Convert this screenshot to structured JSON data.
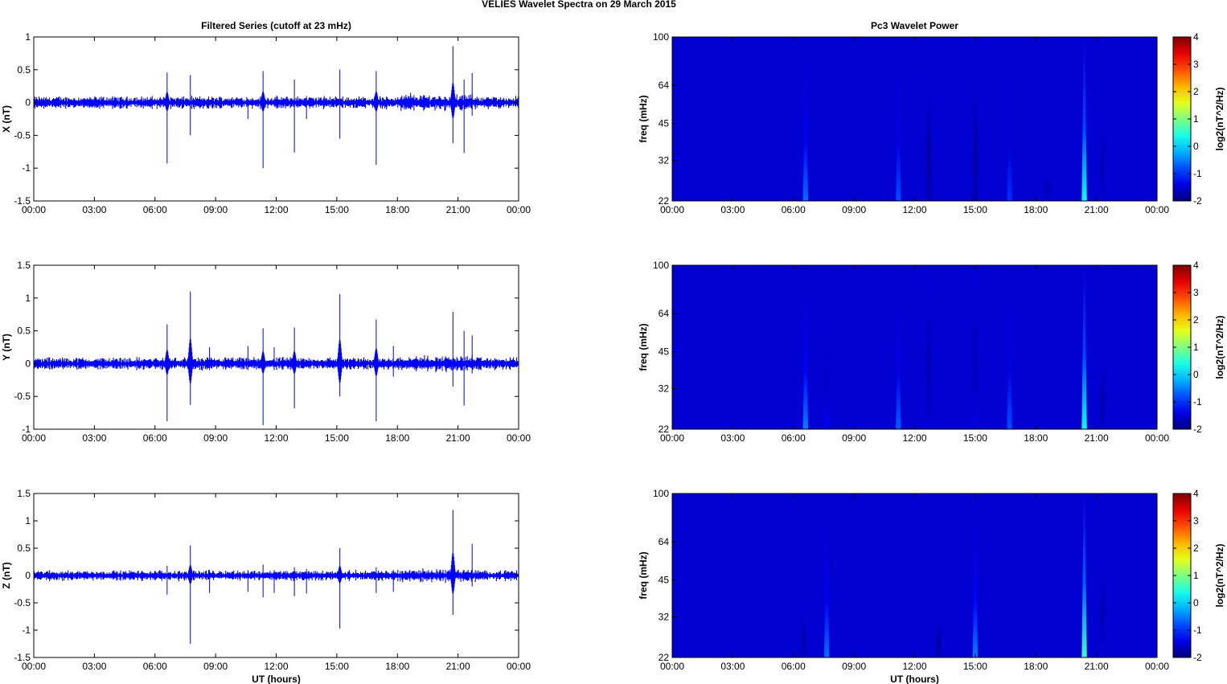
{
  "figure": {
    "suptitle": "VELIES Wavelet Spectra on 29 March      2015",
    "colors": {
      "trace": "#0000ff",
      "axis": "#000000",
      "background": "#ffffff"
    }
  },
  "chart_data": [
    {
      "id": "ts-x",
      "type": "line",
      "title": "Filtered Series (cutoff at 23 mHz)",
      "xlabel": "",
      "ylabel": "X (nT)",
      "xticks": [
        "00:00",
        "03:00",
        "06:00",
        "09:00",
        "12:00",
        "15:00",
        "18:00",
        "21:00",
        "00:00"
      ],
      "xlim_hours": [
        0,
        24
      ],
      "ylim": [
        -1.5,
        1
      ],
      "yticks": [
        -1.5,
        -1,
        -0.5,
        0,
        0.5,
        1
      ],
      "noise_amplitude_nT": 0.06,
      "spikes": [
        {
          "t_hours": 6.6,
          "max": 0.46,
          "min": -0.93
        },
        {
          "t_hours": 7.75,
          "max": 0.42,
          "min": -0.5
        },
        {
          "t_hours": 10.6,
          "max": 0.05,
          "min": -0.25
        },
        {
          "t_hours": 11.35,
          "max": 0.48,
          "min": -1.0
        },
        {
          "t_hours": 12.9,
          "max": 0.35,
          "min": -0.76
        },
        {
          "t_hours": 13.5,
          "max": 0.1,
          "min": -0.25
        },
        {
          "t_hours": 15.15,
          "max": 0.5,
          "min": -0.55
        },
        {
          "t_hours": 16.95,
          "max": 0.48,
          "min": -0.95
        },
        {
          "t_hours": 18.65,
          "max": 0.15,
          "min": -0.1
        },
        {
          "t_hours": 20.75,
          "max": 0.86,
          "min": -0.62
        },
        {
          "t_hours": 21.3,
          "max": 0.35,
          "min": -0.77
        },
        {
          "t_hours": 21.7,
          "max": 0.45,
          "min": -0.2
        }
      ]
    },
    {
      "id": "ts-y",
      "type": "line",
      "title": "",
      "xlabel": "",
      "ylabel": "Y (nT)",
      "xticks": [
        "00:00",
        "03:00",
        "06:00",
        "09:00",
        "12:00",
        "15:00",
        "18:00",
        "21:00",
        "00:00"
      ],
      "xlim_hours": [
        0,
        24
      ],
      "ylim": [
        -1,
        1.5
      ],
      "yticks": [
        -1,
        -0.5,
        0,
        0.5,
        1,
        1.5
      ],
      "noise_amplitude_nT": 0.06,
      "spikes": [
        {
          "t_hours": 6.6,
          "max": 0.6,
          "min": -0.88
        },
        {
          "t_hours": 7.75,
          "max": 1.1,
          "min": -0.63
        },
        {
          "t_hours": 8.7,
          "max": 0.25,
          "min": -0.1
        },
        {
          "t_hours": 10.6,
          "max": 0.27,
          "min": -0.1
        },
        {
          "t_hours": 11.35,
          "max": 0.54,
          "min": -0.94
        },
        {
          "t_hours": 11.9,
          "max": 0.25,
          "min": -0.1
        },
        {
          "t_hours": 12.9,
          "max": 0.55,
          "min": -0.68
        },
        {
          "t_hours": 15.15,
          "max": 1.06,
          "min": -0.5
        },
        {
          "t_hours": 16.95,
          "max": 0.67,
          "min": -0.88
        },
        {
          "t_hours": 17.8,
          "max": 0.27,
          "min": -0.2
        },
        {
          "t_hours": 20.75,
          "max": 0.79,
          "min": -0.35
        },
        {
          "t_hours": 21.3,
          "max": 0.5,
          "min": -0.64
        },
        {
          "t_hours": 21.7,
          "max": 0.43,
          "min": -0.15
        }
      ]
    },
    {
      "id": "ts-z",
      "type": "line",
      "title": "",
      "xlabel": "UT (hours)",
      "ylabel": "Z (nT)",
      "xticks": [
        "00:00",
        "03:00",
        "06:00",
        "09:00",
        "12:00",
        "15:00",
        "18:00",
        "21:00",
        "00:00"
      ],
      "xlim_hours": [
        0,
        24
      ],
      "ylim": [
        -1.5,
        1.5
      ],
      "yticks": [
        -1.5,
        -1,
        -0.5,
        0,
        0.5,
        1,
        1.5
      ],
      "noise_amplitude_nT": 0.06,
      "spikes": [
        {
          "t_hours": 6.6,
          "max": 0.18,
          "min": -0.35
        },
        {
          "t_hours": 7.75,
          "max": 0.55,
          "min": -1.25
        },
        {
          "t_hours": 8.7,
          "max": 0.1,
          "min": -0.32
        },
        {
          "t_hours": 10.6,
          "max": 0.1,
          "min": -0.3
        },
        {
          "t_hours": 11.35,
          "max": 0.2,
          "min": -0.4
        },
        {
          "t_hours": 11.9,
          "max": 0.1,
          "min": -0.32
        },
        {
          "t_hours": 12.9,
          "max": 0.15,
          "min": -0.38
        },
        {
          "t_hours": 13.5,
          "max": 0.12,
          "min": -0.33
        },
        {
          "t_hours": 15.15,
          "max": 0.5,
          "min": -0.97
        },
        {
          "t_hours": 16.95,
          "max": 0.15,
          "min": -0.32
        },
        {
          "t_hours": 17.8,
          "max": 0.1,
          "min": -0.3
        },
        {
          "t_hours": 20.75,
          "max": 1.2,
          "min": -0.72
        },
        {
          "t_hours": 21.7,
          "max": 0.58,
          "min": -0.2
        }
      ]
    },
    {
      "id": "wp-1",
      "type": "heatmap",
      "title": "Pc3 Wavelet Power",
      "xlabel": "",
      "ylabel": "freq (mHz)",
      "xticks": [
        "00:00",
        "03:00",
        "06:00",
        "09:00",
        "12:00",
        "15:00",
        "18:00",
        "21:00",
        "00:00"
      ],
      "xlim_hours": [
        0,
        24
      ],
      "yticks": [
        22,
        32,
        45,
        64,
        100
      ],
      "ylim_mHz": [
        22,
        100
      ],
      "yscale": "log",
      "colorbar": {
        "label": "log2(nT^2/Hz)",
        "range": [
          -2,
          4
        ],
        "ticks": [
          -2,
          -1,
          0,
          1,
          2,
          3,
          4
        ],
        "colormap": "jet"
      },
      "background_value": -2,
      "bursts": [
        {
          "t_hours": 6.6,
          "peak": -0.6,
          "fmax_mHz": 75
        },
        {
          "t_hours": 11.2,
          "peak": -0.8,
          "fmax_mHz": 70
        },
        {
          "t_hours": 12.7,
          "peak": -1.7,
          "fmax_mHz": 70
        },
        {
          "t_hours": 15.0,
          "peak": -1.7,
          "fmax_mHz": 75
        },
        {
          "t_hours": 16.7,
          "peak": -1.0,
          "fmax_mHz": 68
        },
        {
          "t_hours": 18.6,
          "peak": -1.5,
          "fmax_mHz": 29
        },
        {
          "t_hours": 20.4,
          "peak": 0.3,
          "fmax_mHz": 100
        },
        {
          "t_hours": 21.3,
          "peak": -1.5,
          "fmax_mHz": 48
        }
      ]
    },
    {
      "id": "wp-2",
      "type": "heatmap",
      "title": "",
      "xlabel": "",
      "ylabel": "freq (mHz)",
      "xticks": [
        "00:00",
        "03:00",
        "06:00",
        "09:00",
        "12:00",
        "15:00",
        "18:00",
        "21:00",
        "00:00"
      ],
      "xlim_hours": [
        0,
        24
      ],
      "yticks": [
        22,
        32,
        45,
        64,
        100
      ],
      "ylim_mHz": [
        22,
        100
      ],
      "yscale": "log",
      "colorbar": {
        "label": "log2(nT^2/Hz)",
        "range": [
          -2,
          4
        ],
        "ticks": [
          -2,
          -1,
          0,
          1,
          2,
          3,
          4
        ],
        "colormap": "jet"
      },
      "background_value": -2,
      "bursts": [
        {
          "t_hours": 6.6,
          "peak": -0.5,
          "fmax_mHz": 75
        },
        {
          "t_hours": 7.65,
          "peak": -1.3,
          "fmax_mHz": 60
        },
        {
          "t_hours": 11.2,
          "peak": -0.7,
          "fmax_mHz": 68
        },
        {
          "t_hours": 12.7,
          "peak": -1.5,
          "fmax_mHz": 90
        },
        {
          "t_hours": 15.0,
          "peak": -1.4,
          "fmax_mHz": 95
        },
        {
          "t_hours": 16.7,
          "peak": -0.8,
          "fmax_mHz": 72
        },
        {
          "t_hours": 20.4,
          "peak": 0.3,
          "fmax_mHz": 100
        },
        {
          "t_hours": 21.3,
          "peak": -1.6,
          "fmax_mHz": 45
        }
      ]
    },
    {
      "id": "wp-3",
      "type": "heatmap",
      "title": "",
      "xlabel": "UT (hours)",
      "ylabel": "freq (mHz)",
      "xticks": [
        "00:00",
        "03:00",
        "06:00",
        "09:00",
        "12:00",
        "15:00",
        "18:00",
        "21:00",
        "00:00"
      ],
      "xlim_hours": [
        0,
        24
      ],
      "yticks": [
        22,
        32,
        45,
        64,
        100
      ],
      "ylim_mHz": [
        22,
        100
      ],
      "yscale": "log",
      "colorbar": {
        "label": "log2(nT^2/Hz)",
        "range": [
          -2,
          4
        ],
        "ticks": [
          -2,
          -1,
          0,
          1,
          2,
          3,
          4
        ],
        "colormap": "jet"
      },
      "background_value": -2,
      "bursts": [
        {
          "t_hours": 6.5,
          "peak": -1.6,
          "fmax_mHz": 35
        },
        {
          "t_hours": 7.65,
          "peak": -0.6,
          "fmax_mHz": 70
        },
        {
          "t_hours": 13.2,
          "peak": -1.7,
          "fmax_mHz": 32
        },
        {
          "t_hours": 15.0,
          "peak": -0.5,
          "fmax_mHz": 72
        },
        {
          "t_hours": 20.4,
          "peak": 0.6,
          "fmax_mHz": 100
        },
        {
          "t_hours": 21.3,
          "peak": -1.5,
          "fmax_mHz": 60
        }
      ]
    }
  ]
}
